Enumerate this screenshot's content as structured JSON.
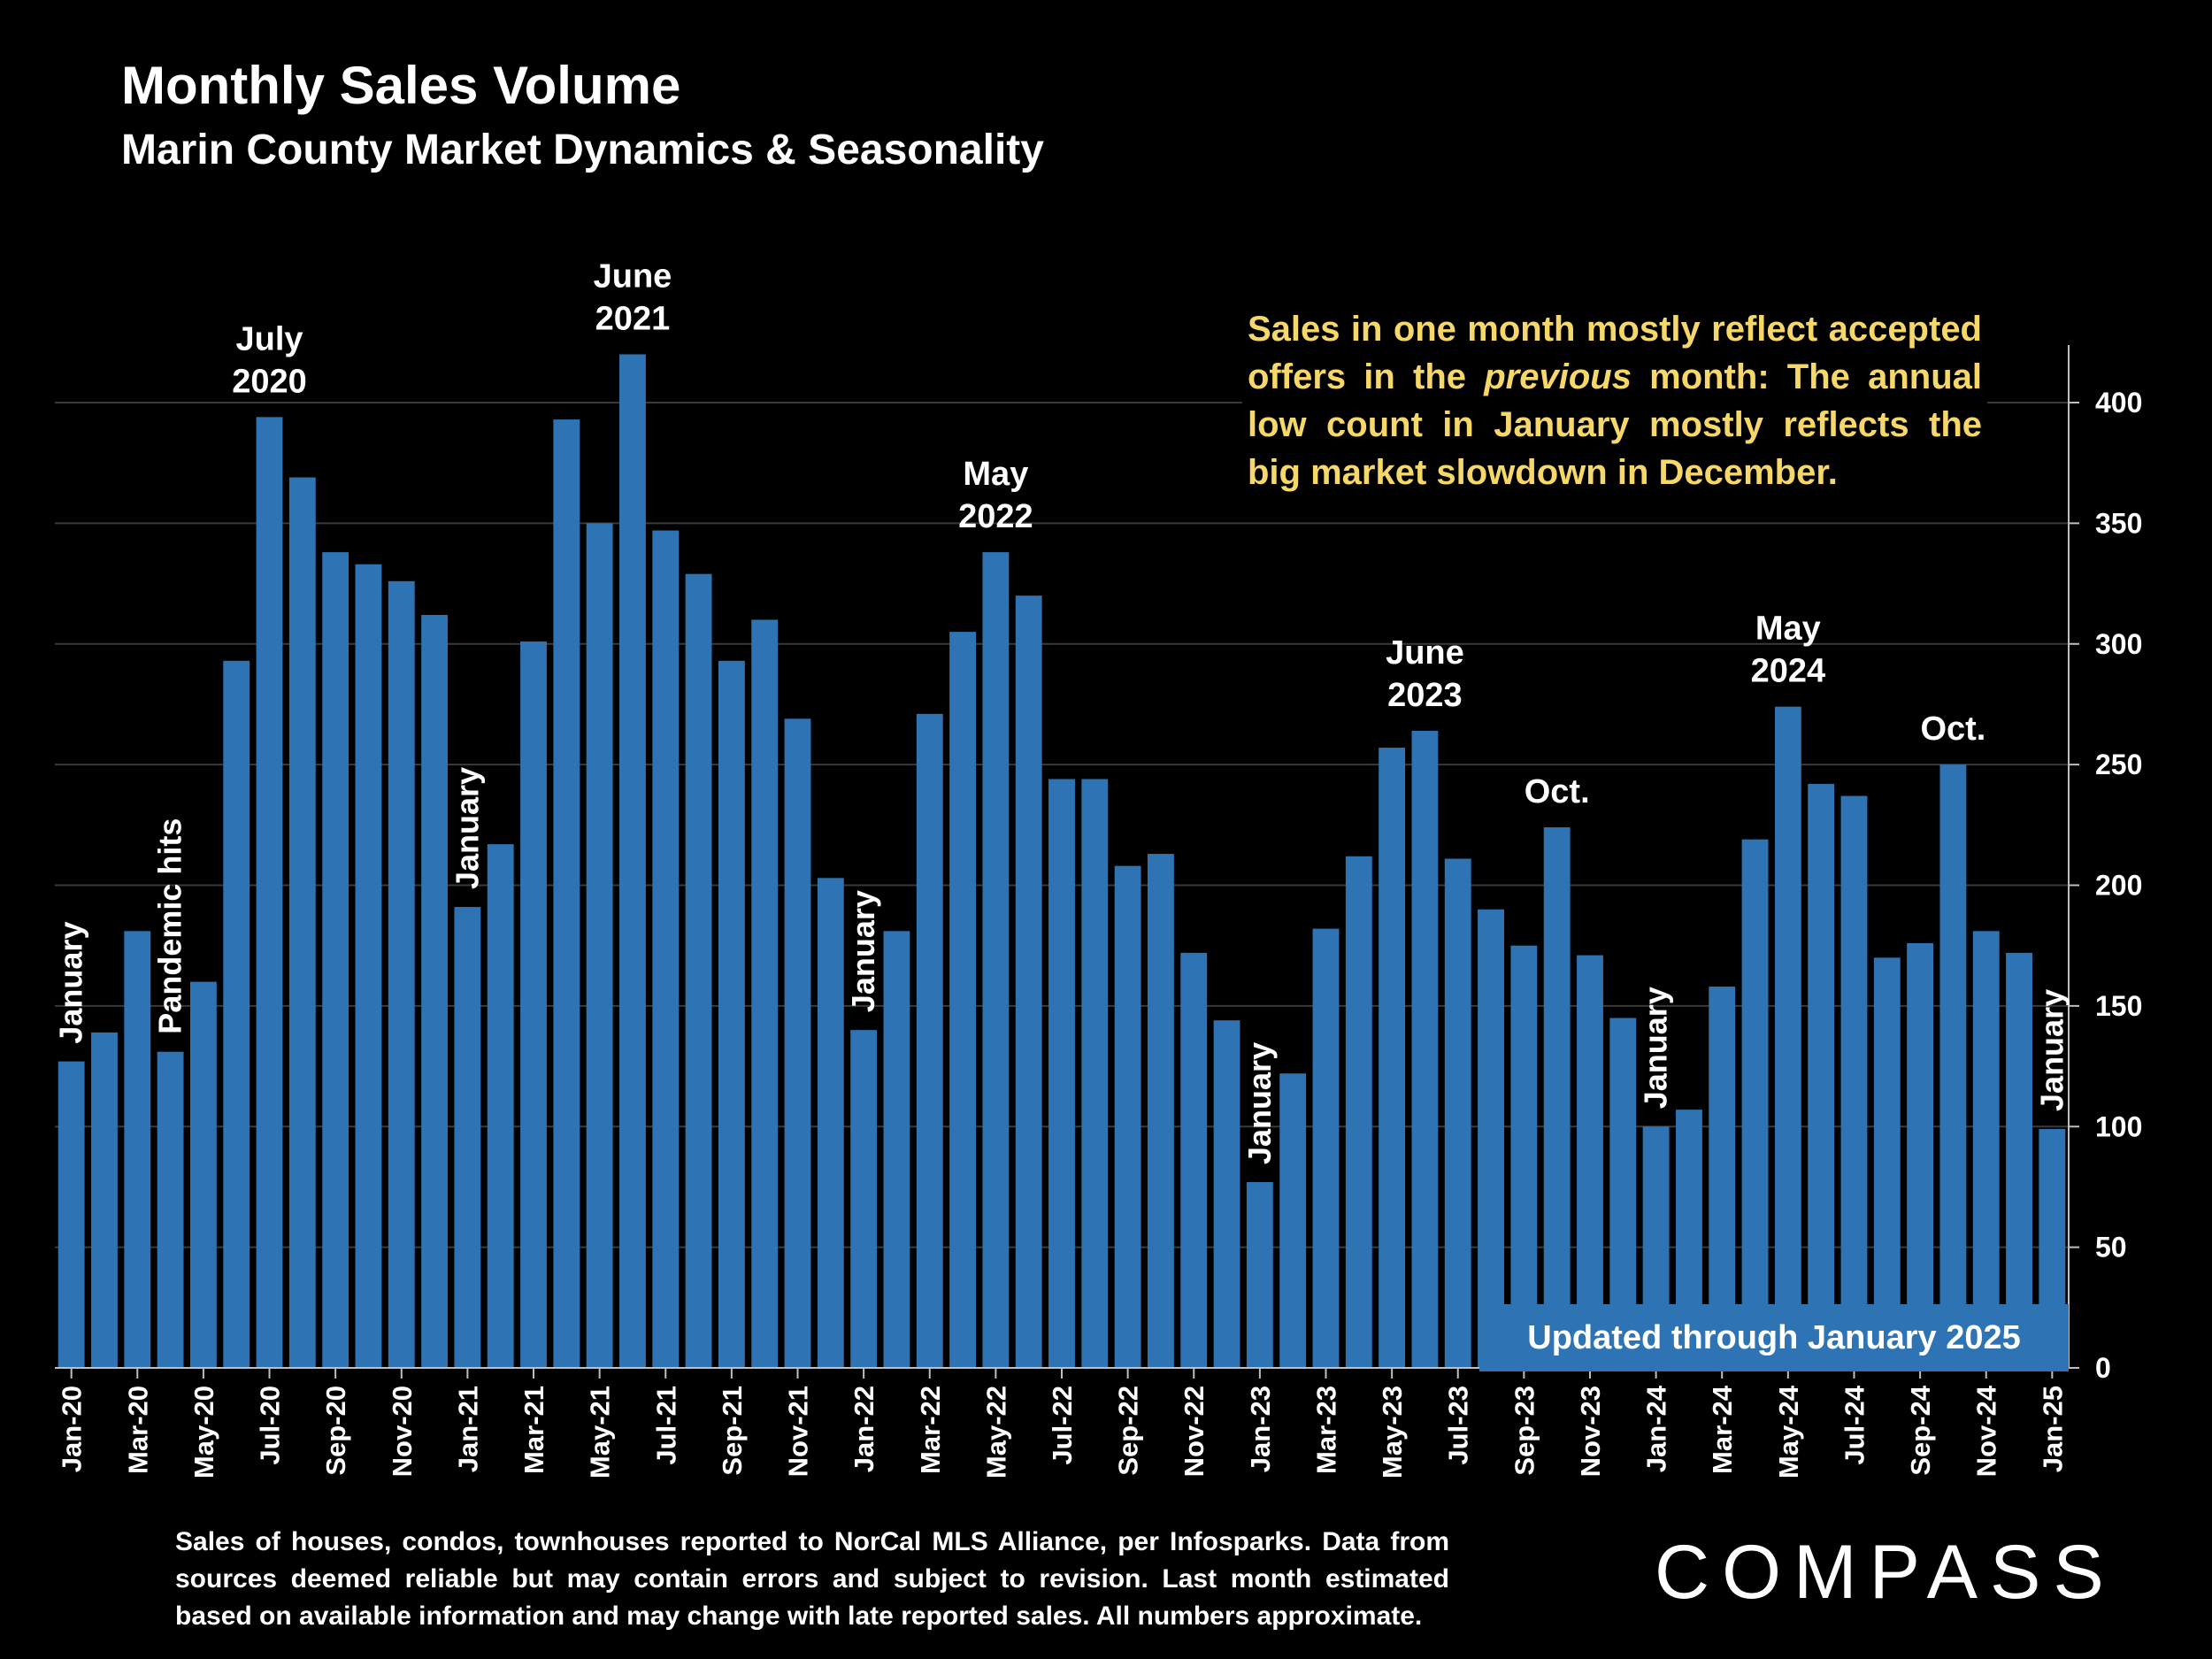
{
  "title": "Monthly Sales Volume",
  "subtitle": "Marin County Market Dynamics & Seasonality",
  "note": {
    "part1": "Sales in one month mostly reflect accepted offers in the",
    "emphasis": "previous",
    "part2": "month:  The annual low count in January mostly reflects the big market slowdown in December."
  },
  "updated_label": "Updated through January 2025",
  "footnote": "Sales of houses, condos, townhouses reported to NorCal MLS Alliance, per Infosparks. Data from sources deemed reliable but may contain errors and subject to revision. Last month estimated based on available information and may change with late reported sales. All numbers approximate.",
  "brand": "COMPASS",
  "colors": {
    "bar": "#2e74b5",
    "note": "#f6d76a",
    "grid": "#3a3a3a",
    "axis": "#bfbfbf"
  },
  "chart_data": {
    "type": "bar",
    "title": "Monthly Sales Volume",
    "ylim": [
      0,
      425
    ],
    "yticks": [
      0,
      50,
      100,
      150,
      200,
      250,
      300,
      350,
      400
    ],
    "grid": true,
    "categories": [
      "Jan-20",
      "Feb-20",
      "Mar-20",
      "Apr-20",
      "May-20",
      "Jun-20",
      "Jul-20",
      "Aug-20",
      "Sep-20",
      "Oct-20",
      "Nov-20",
      "Dec-20",
      "Jan-21",
      "Feb-21",
      "Mar-21",
      "Apr-21",
      "May-21",
      "Jun-21",
      "Jul-21",
      "Aug-21",
      "Sep-21",
      "Oct-21",
      "Nov-21",
      "Dec-21",
      "Jan-22",
      "Feb-22",
      "Mar-22",
      "Apr-22",
      "May-22",
      "Jun-22",
      "Jul-22",
      "Aug-22",
      "Sep-22",
      "Oct-22",
      "Nov-22",
      "Dec-22",
      "Jan-23",
      "Feb-23",
      "Mar-23",
      "Apr-23",
      "May-23",
      "Jun-23",
      "Jul-23",
      "Aug-23",
      "Sep-23",
      "Oct-23",
      "Nov-23",
      "Dec-23",
      "Jan-24",
      "Feb-24",
      "Mar-24",
      "Apr-24",
      "May-24",
      "Jun-24",
      "Jul-24",
      "Aug-24",
      "Sep-24",
      "Oct-24",
      "Nov-24",
      "Dec-24",
      "Jan-25"
    ],
    "xtick_labels": [
      "Jan-20",
      "Mar-20",
      "May-20",
      "Jul-20",
      "Sep-20",
      "Nov-20",
      "Jan-21",
      "Mar-21",
      "May-21",
      "Jul-21",
      "Sep-21",
      "Nov-21",
      "Jan-22",
      "Mar-22",
      "May-22",
      "Jul-22",
      "Sep-22",
      "Nov-22",
      "Jan-23",
      "Mar-23",
      "May-23",
      "Jul-23",
      "Sep-23",
      "Nov-23",
      "Jan-24",
      "Mar-24",
      "May-24",
      "Jul-24",
      "Sep-24",
      "Nov-24",
      "Jan-25"
    ],
    "values": [
      127,
      139,
      181,
      131,
      160,
      293,
      394,
      369,
      338,
      333,
      326,
      312,
      191,
      217,
      301,
      393,
      350,
      420,
      347,
      329,
      293,
      310,
      269,
      203,
      140,
      181,
      271,
      305,
      338,
      320,
      244,
      244,
      208,
      213,
      172,
      144,
      77,
      122,
      182,
      212,
      257,
      264,
      211,
      190,
      175,
      224,
      171,
      145,
      100,
      107,
      158,
      219,
      274,
      242,
      237,
      170,
      176,
      250,
      181,
      172,
      99
    ],
    "annotations": [
      {
        "index": 0,
        "text": [
          "January"
        ],
        "vertical": true
      },
      {
        "index": 3,
        "text": [
          "Pandemic hits"
        ],
        "vertical": true
      },
      {
        "index": 6,
        "text": [
          "July",
          "2020"
        ],
        "vertical": false
      },
      {
        "index": 12,
        "text": [
          "January"
        ],
        "vertical": true
      },
      {
        "index": 17,
        "text": [
          "June",
          "2021"
        ],
        "vertical": false
      },
      {
        "index": 24,
        "text": [
          "January"
        ],
        "vertical": true
      },
      {
        "index": 28,
        "text": [
          "May",
          "2022"
        ],
        "vertical": false
      },
      {
        "index": 36,
        "text": [
          "January"
        ],
        "vertical": true
      },
      {
        "index": 41,
        "text": [
          "June",
          "2023"
        ],
        "vertical": false
      },
      {
        "index": 45,
        "text": [
          "Oct."
        ],
        "vertical": false
      },
      {
        "index": 48,
        "text": [
          "January"
        ],
        "vertical": true
      },
      {
        "index": 52,
        "text": [
          "May",
          "2024"
        ],
        "vertical": false
      },
      {
        "index": 57,
        "text": [
          "Oct."
        ],
        "vertical": false
      },
      {
        "index": 60,
        "text": [
          "January"
        ],
        "vertical": true
      }
    ]
  }
}
